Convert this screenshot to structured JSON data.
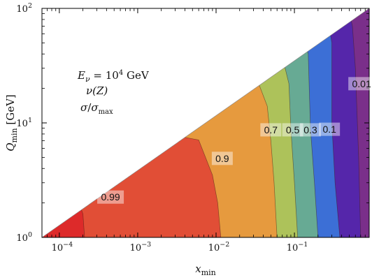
{
  "chart_data": {
    "type": "contour",
    "title": "",
    "xlabel": "x_min",
    "ylabel": "Q_min [GeV]",
    "xscale": "log",
    "yscale": "log",
    "xlim": [
      6e-05,
      0.9
    ],
    "ylim": [
      1,
      100
    ],
    "x_ticks": [
      {
        "value": 0.0001,
        "label": "10^-4"
      },
      {
        "value": 0.001,
        "label": "10^-3"
      },
      {
        "value": 0.01,
        "label": "10^-2"
      },
      {
        "value": 0.1,
        "label": "10^-1"
      }
    ],
    "y_ticks": [
      {
        "value": 1,
        "label": "10^0"
      },
      {
        "value": 10,
        "label": "10^1"
      },
      {
        "value": 100,
        "label": "10^2"
      }
    ],
    "annotation": [
      "E_ν = 10^4 GeV",
      "ν(Z)",
      "σ/σ_max"
    ],
    "kinematic_boundary": [
      [
        6e-05,
        1
      ],
      [
        0.9,
        100
      ]
    ],
    "levels": [
      {
        "label": "0.99",
        "label_at": [
          0.00045,
          2.25
        ],
        "boundary": [
          [
            0.00021,
            1
          ],
          [
            0.0002,
            1.6
          ],
          [
            0.00017,
            2.2
          ],
          [
            6e-05,
            2.25
          ]
        ]
      },
      {
        "label": "0.9",
        "label_at": [
          0.012,
          4.9
        ],
        "boundary": [
          [
            0.0115,
            1
          ],
          [
            0.0105,
            2.0
          ],
          [
            0.009,
            3.5
          ],
          [
            0.006,
            7.1
          ],
          [
            0.0035,
            7.6
          ],
          [
            0.002,
            7.0
          ]
        ]
      },
      {
        "label": "0.7",
        "label_at": [
          0.05,
          8.7
        ],
        "boundary": [
          [
            0.06,
            1
          ],
          [
            0.055,
            3.0
          ],
          [
            0.05,
            7.0
          ],
          [
            0.045,
            14
          ],
          [
            0.035,
            22
          ],
          [
            0.022,
            25
          ]
        ]
      },
      {
        "label": "0.5",
        "label_at": [
          0.095,
          8.7
        ],
        "boundary": [
          [
            0.11,
            1
          ],
          [
            0.1,
            3.0
          ],
          [
            0.09,
            9.0
          ],
          [
            0.085,
            22
          ],
          [
            0.07,
            38
          ],
          [
            0.058,
            43
          ]
        ]
      },
      {
        "label": "0.3",
        "label_at": [
          0.16,
          8.7
        ],
        "boundary": [
          [
            0.2,
            1
          ],
          [
            0.18,
            3.0
          ],
          [
            0.16,
            9.0
          ],
          [
            0.15,
            40
          ],
          [
            0.13,
            58
          ],
          [
            0.11,
            62
          ]
        ]
      },
      {
        "label": "0.1",
        "label_at": [
          0.28,
          8.8
        ],
        "boundary": [
          [
            0.38,
            1
          ],
          [
            0.33,
            3.0
          ],
          [
            0.3,
            10
          ],
          [
            0.3,
            50
          ],
          [
            0.27,
            78
          ],
          [
            0.22,
            85
          ]
        ]
      },
      {
        "label": "0.01",
        "label_at": [
          0.72,
          22
        ],
        "boundary": [
          [
            0.7,
            1
          ],
          [
            0.66,
            5
          ],
          [
            0.6,
            30
          ],
          [
            0.55,
            70
          ],
          [
            0.5,
            94
          ],
          [
            0.42,
            97
          ]
        ]
      }
    ],
    "fill_colors": [
      "#dd2a2a",
      "#e14e36",
      "#e69a3e",
      "#adc25a",
      "#67aa94",
      "#3c6fd6",
      "#5526aa",
      "#7a2f8a"
    ],
    "grid": false,
    "legend": "none"
  }
}
